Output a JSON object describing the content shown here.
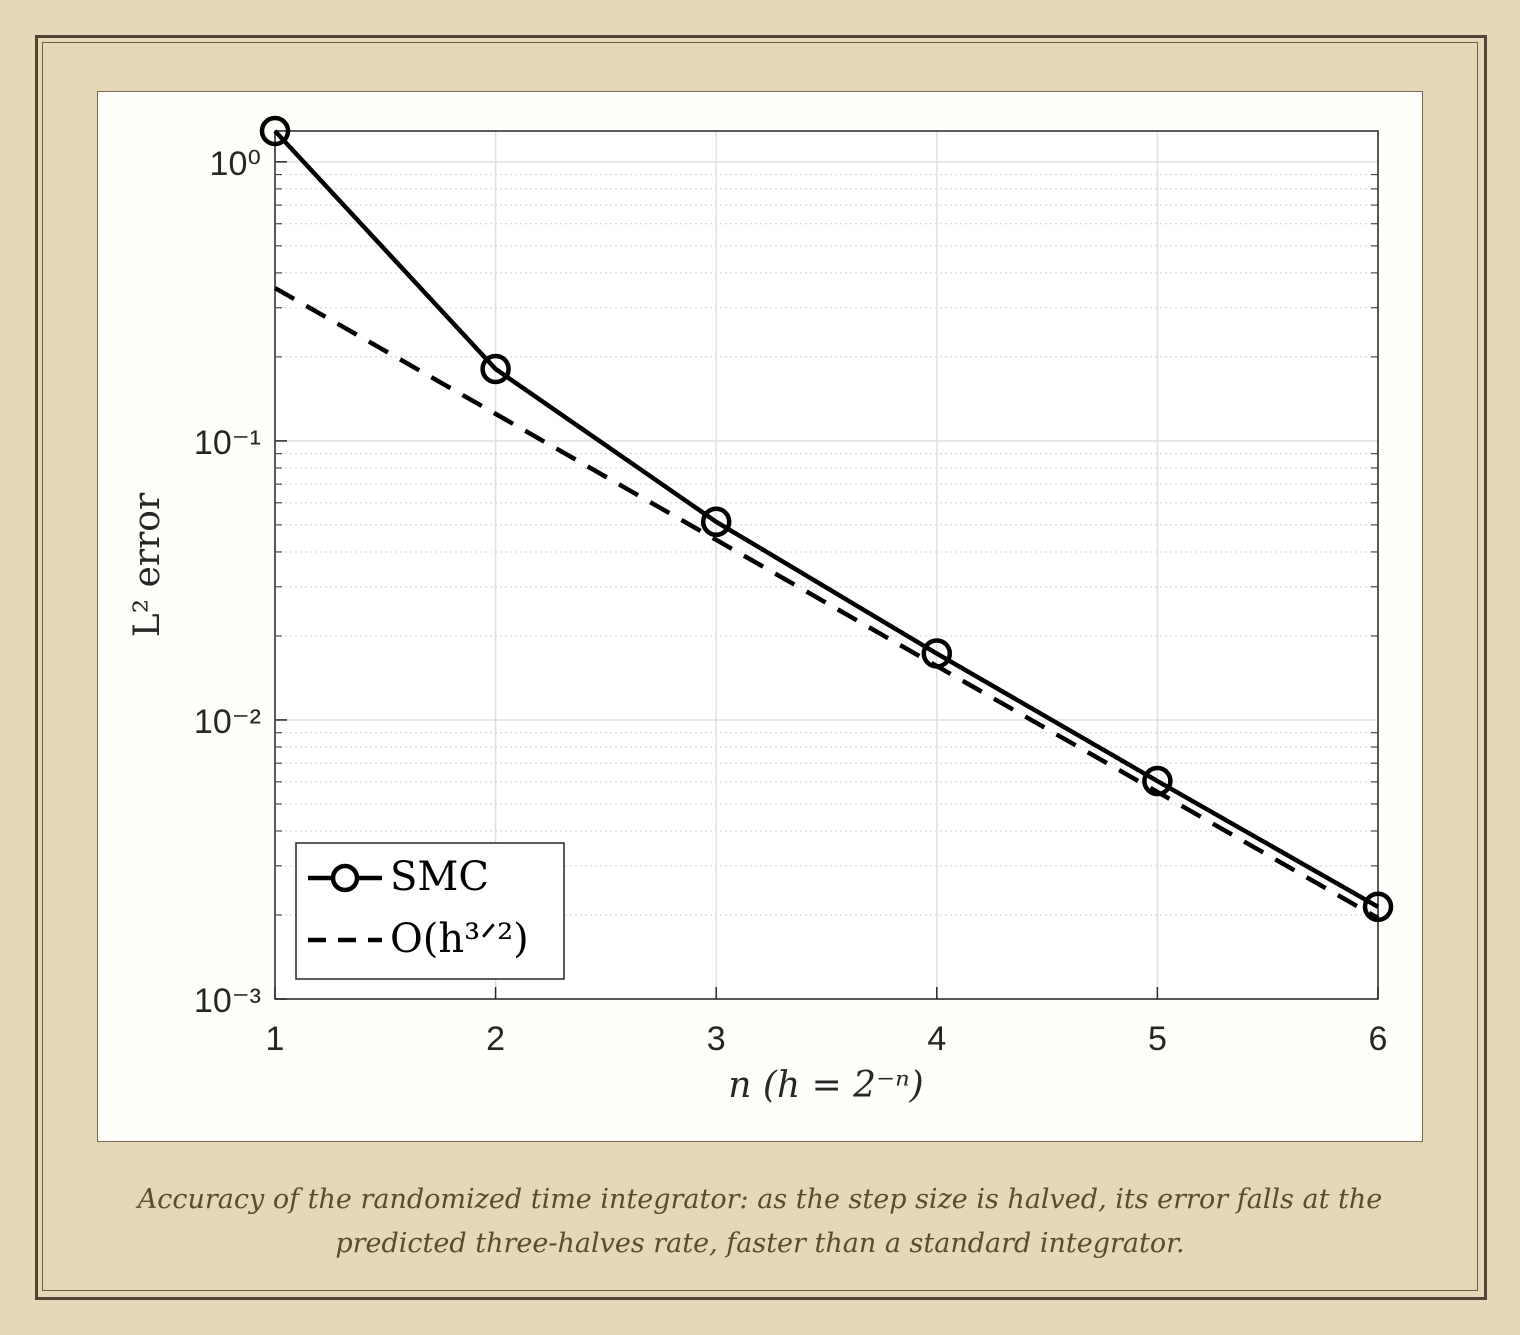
{
  "chart_data": {
    "type": "line",
    "x": [
      1,
      2,
      3,
      4,
      5,
      6
    ],
    "series": [
      {
        "name": "SMC",
        "color": "#000000",
        "marker": "circle",
        "linestyle": "solid",
        "values": [
          1.29,
          0.181,
          0.0513,
          0.0173,
          0.00604,
          0.00214
        ]
      },
      {
        "name": "O(h³ᐟ²)",
        "color": "#000000",
        "marker": "none",
        "linestyle": "dashed",
        "values": [
          0.353,
          0.125,
          0.0442,
          0.0156,
          0.00552,
          0.00195
        ]
      }
    ],
    "xlabel": "n (h = 2⁻ⁿ)",
    "ylabel": "L² error",
    "xlim": [
      1,
      6
    ],
    "ylim": [
      0.001,
      1.29
    ],
    "xticks": [
      1,
      2,
      3,
      4,
      5,
      6
    ],
    "yticks": [
      {
        "value": 0.001,
        "label": "10⁻³"
      },
      {
        "value": 0.01,
        "label": "10⁻²"
      },
      {
        "value": 0.1,
        "label": "10⁻¹"
      },
      {
        "value": 1,
        "label": "10⁰"
      }
    ],
    "yscale": "log",
    "grid": true,
    "legend": "southwest"
  },
  "caption": "Accuracy of the randomized time integrator: as the step size is halved, its error falls at the predicted three-halves rate, faster than a standard integrator."
}
